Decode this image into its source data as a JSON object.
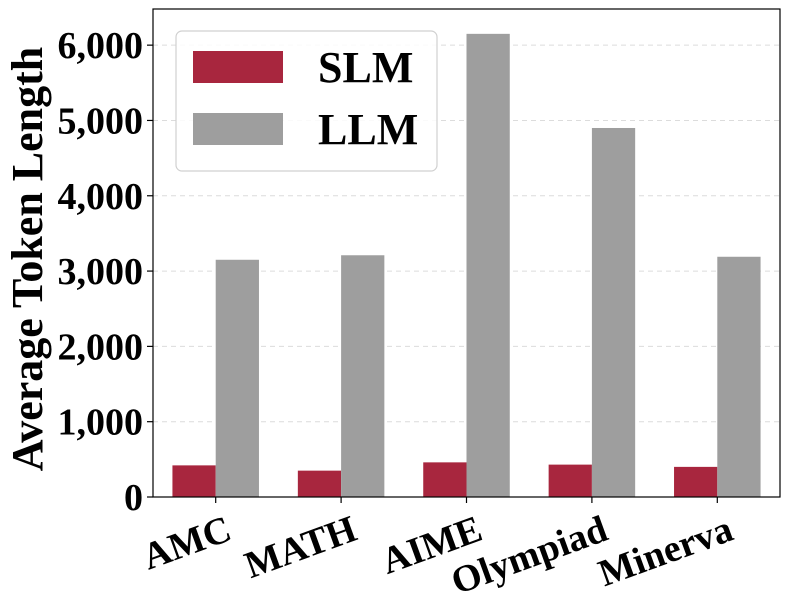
{
  "chart_data": {
    "type": "bar",
    "categories": [
      "AMC",
      "MATH",
      "AIME",
      "Olympiad",
      "Minerva"
    ],
    "series": [
      {
        "name": "SLM",
        "values": [
          420,
          350,
          460,
          430,
          400
        ],
        "color": "#a8263e"
      },
      {
        "name": "LLM",
        "values": [
          3150,
          3210,
          6150,
          4900,
          3190
        ],
        "color": "#9e9e9e"
      }
    ],
    "title": "",
    "xlabel": "",
    "ylabel": "Average Token Length",
    "ylim": [
      0,
      6480
    ],
    "yticks": [
      0,
      1000,
      2000,
      3000,
      4000,
      5000,
      6000
    ],
    "ytick_labels": [
      "0",
      "1,000",
      "2,000",
      "3,000",
      "4,000",
      "5,000",
      "6,000"
    ],
    "grid": "horizontal dashed",
    "legend_position": "top-left",
    "xtick_rotation": "rotated ~20 degrees"
  }
}
